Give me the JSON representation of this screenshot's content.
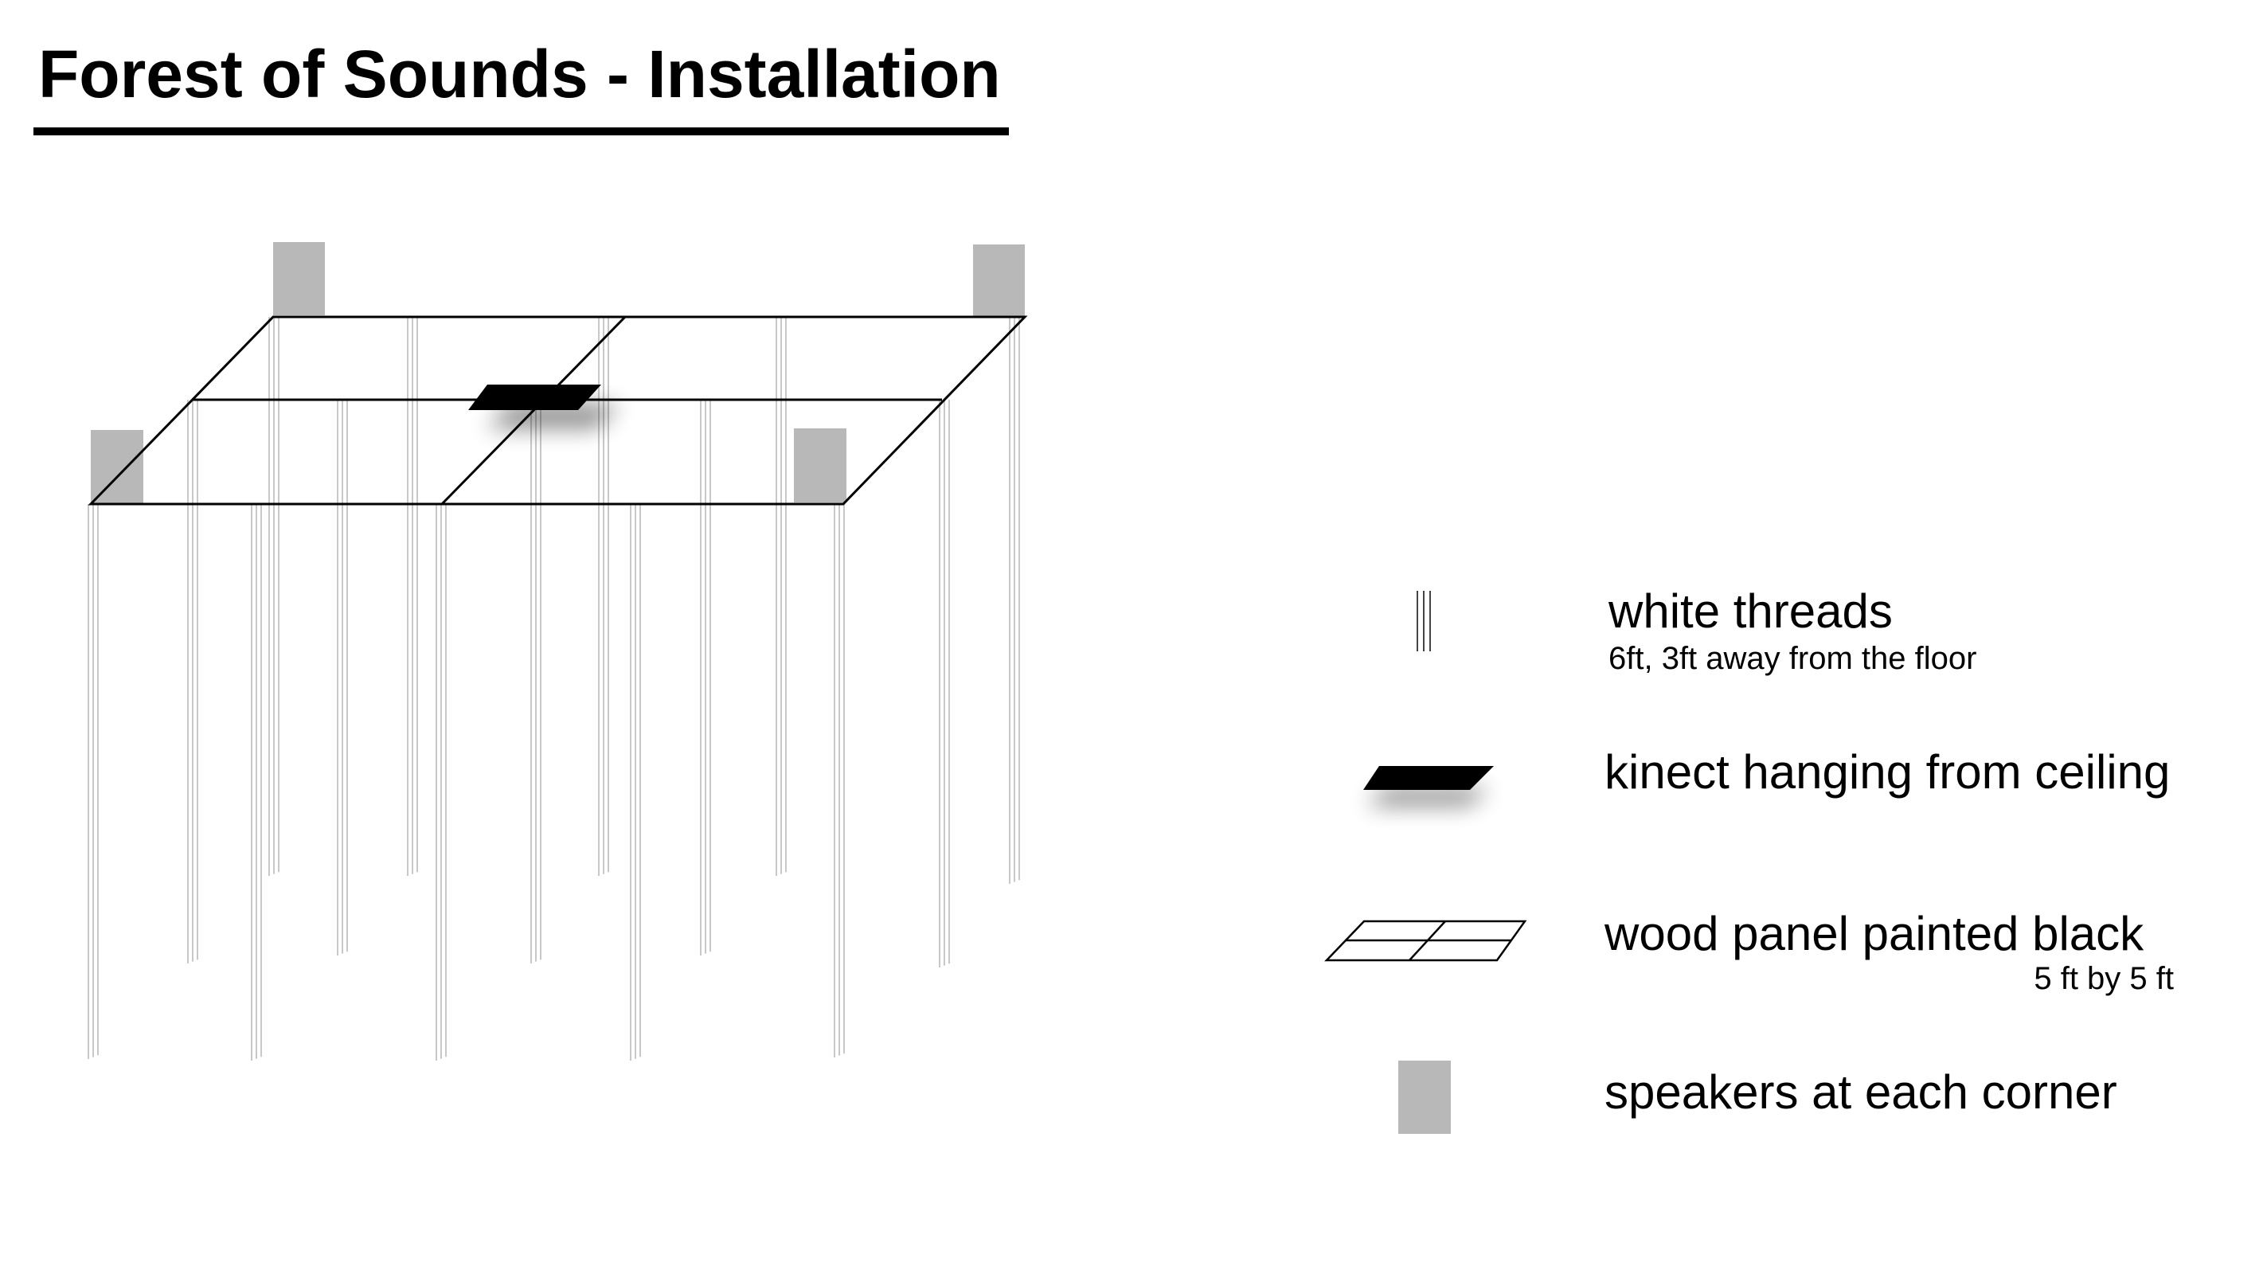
{
  "title": "Forest of Sounds - Installation",
  "colors": {
    "ink": "#000000",
    "speaker": "#b8b8b8",
    "thread": "#c8c8c8",
    "background": "#ffffff"
  },
  "legend": {
    "threads": {
      "icon": "white-threads-icon",
      "label": "white threads",
      "detail": "6ft, 3ft away from the floor"
    },
    "kinect": {
      "icon": "kinect-icon",
      "label": "kinect hanging from ceiling"
    },
    "panel": {
      "icon": "wood-panel-icon",
      "label": "wood panel painted black",
      "detail": "5 ft by 5 ft"
    },
    "speaker": {
      "icon": "speaker-icon",
      "label": "speakers at each corner"
    }
  }
}
